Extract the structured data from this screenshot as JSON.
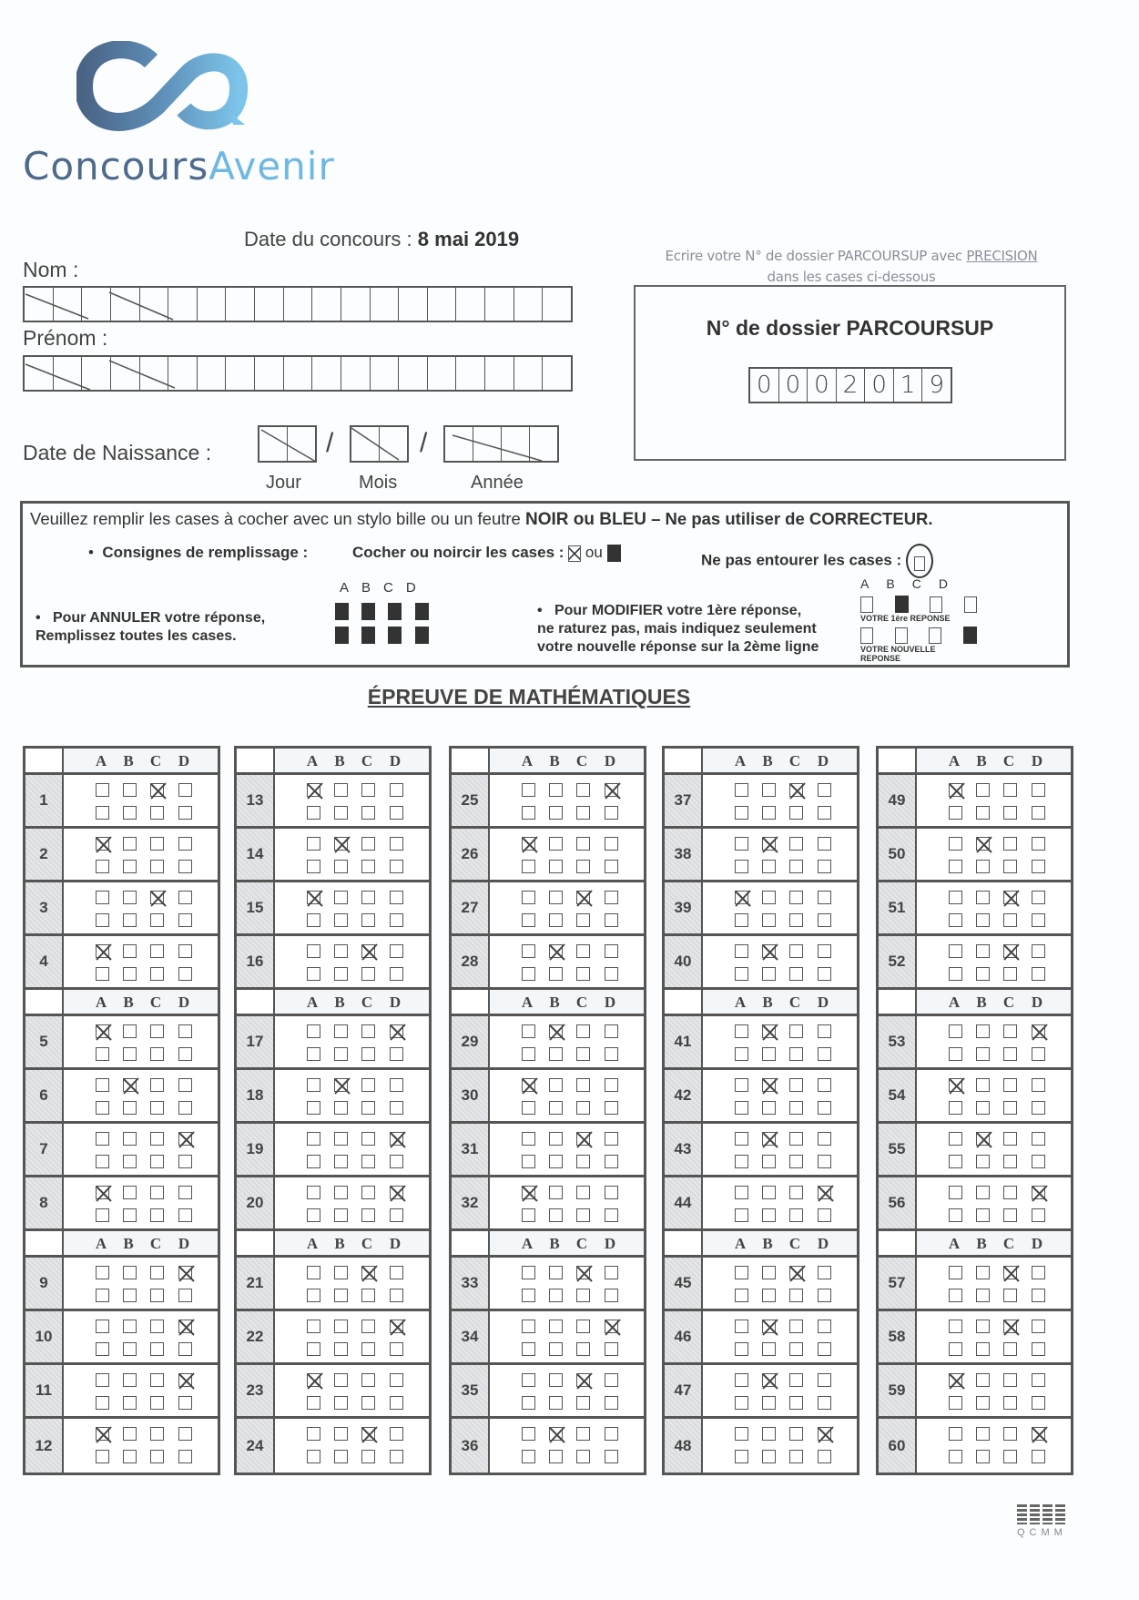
{
  "logo": {
    "text_part1": "Concours",
    "text_part2": "Avenir",
    "colors": {
      "dark": "#4e6a8c",
      "light": "#6fb8e3"
    }
  },
  "header": {
    "date_label": "Date du concours :",
    "date_value": "8 mai 2019"
  },
  "identity": {
    "nom_label": "Nom :",
    "prenom_label": "Prénom :",
    "birth_label": "Date de Naissance :",
    "jour_label": "Jour",
    "mois_label": "Mois",
    "annee_label": "Année",
    "separator": "/"
  },
  "dossier": {
    "instruction_line1_prefix": "Ecrire votre  N° de dossier  PARCOURSUP avec ",
    "instruction_emphasis": "PRECISION",
    "instruction_line2": "dans les cases ci-dessous",
    "title": "N° de dossier PARCOURSUP",
    "digits": [
      "0",
      "0",
      "0",
      "2",
      "0",
      "1",
      "9"
    ]
  },
  "instructions": {
    "line1_prefix": "Veuillez remplir les cases à cocher avec un stylo bille ou un feutre ",
    "line1_bold": "NOIR ou BLEU",
    "line1_bold2": " – Ne pas utiliser de CORRECTEUR.",
    "bullet": "•",
    "consignes": "Consignes de remplissage :",
    "cocher": "Cocher ou noircir les cases :",
    "ou": "ou",
    "entourer": "Ne pas entourer les cases :",
    "annuler_line1": "Pour ANNULER votre réponse,",
    "annuler_line2": "Remplissez toutes les cases.",
    "modifier_line1": "Pour MODIFIER votre 1ère réponse,",
    "modifier_line2": "ne raturez pas, mais indiquez seulement",
    "modifier_line3": "votre nouvelle réponse sur la 2ème ligne",
    "first_answer": "VOTRE 1ère REPONSE",
    "new_answer_line1": "VOTRE NOUVELLE",
    "new_answer_line2": "REPONSE"
  },
  "title": "ÉPREUVE DE MATHÉMATIQUES",
  "letters": [
    "A",
    "B",
    "C",
    "D"
  ],
  "answers": [
    {
      "q": 1,
      "mark": "C"
    },
    {
      "q": 2,
      "mark": "A"
    },
    {
      "q": 3,
      "mark": "C"
    },
    {
      "q": 4,
      "mark": "A"
    },
    {
      "q": 5,
      "mark": "A"
    },
    {
      "q": 6,
      "mark": "B"
    },
    {
      "q": 7,
      "mark": "D"
    },
    {
      "q": 8,
      "mark": "A"
    },
    {
      "q": 9,
      "mark": "D"
    },
    {
      "q": 10,
      "mark": "D"
    },
    {
      "q": 11,
      "mark": "D"
    },
    {
      "q": 12,
      "mark": "A"
    },
    {
      "q": 13,
      "mark": "A"
    },
    {
      "q": 14,
      "mark": "B"
    },
    {
      "q": 15,
      "mark": "A"
    },
    {
      "q": 16,
      "mark": "C"
    },
    {
      "q": 17,
      "mark": "D"
    },
    {
      "q": 18,
      "mark": "B"
    },
    {
      "q": 19,
      "mark": "D"
    },
    {
      "q": 20,
      "mark": "D"
    },
    {
      "q": 21,
      "mark": "C"
    },
    {
      "q": 22,
      "mark": "D"
    },
    {
      "q": 23,
      "mark": "A"
    },
    {
      "q": 24,
      "mark": "C"
    },
    {
      "q": 25,
      "mark": "D"
    },
    {
      "q": 26,
      "mark": "A"
    },
    {
      "q": 27,
      "mark": "C"
    },
    {
      "q": 28,
      "mark": "B"
    },
    {
      "q": 29,
      "mark": "B"
    },
    {
      "q": 30,
      "mark": "A"
    },
    {
      "q": 31,
      "mark": "C"
    },
    {
      "q": 32,
      "mark": "A"
    },
    {
      "q": 33,
      "mark": "C"
    },
    {
      "q": 34,
      "mark": "D"
    },
    {
      "q": 35,
      "mark": "C"
    },
    {
      "q": 36,
      "mark": "B"
    },
    {
      "q": 37,
      "mark": "C"
    },
    {
      "q": 38,
      "mark": "B"
    },
    {
      "q": 39,
      "mark": "A"
    },
    {
      "q": 40,
      "mark": "B"
    },
    {
      "q": 41,
      "mark": "B"
    },
    {
      "q": 42,
      "mark": "B"
    },
    {
      "q": 43,
      "mark": "B"
    },
    {
      "q": 44,
      "mark": "D"
    },
    {
      "q": 45,
      "mark": "C"
    },
    {
      "q": 46,
      "mark": "B"
    },
    {
      "q": 47,
      "mark": "B"
    },
    {
      "q": 48,
      "mark": "D"
    },
    {
      "q": 49,
      "mark": "A"
    },
    {
      "q": 50,
      "mark": "B"
    },
    {
      "q": 51,
      "mark": "C"
    },
    {
      "q": 52,
      "mark": "C"
    },
    {
      "q": 53,
      "mark": "D"
    },
    {
      "q": 54,
      "mark": "A"
    },
    {
      "q": 55,
      "mark": "B"
    },
    {
      "q": 56,
      "mark": "D"
    },
    {
      "q": 57,
      "mark": "C"
    },
    {
      "q": 58,
      "mark": "C"
    },
    {
      "q": 59,
      "mark": "A"
    },
    {
      "q": 60,
      "mark": "D"
    }
  ],
  "footer": {
    "code": "QCMM"
  }
}
